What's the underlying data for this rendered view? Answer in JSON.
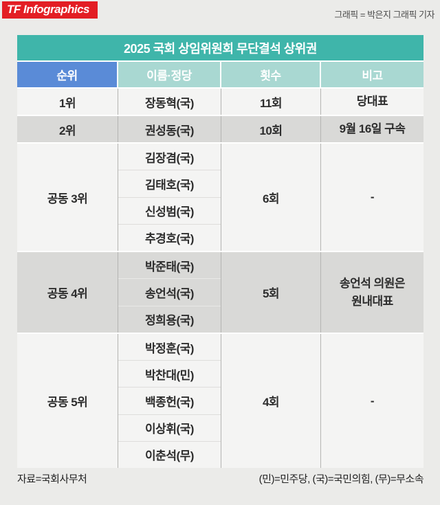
{
  "branding": {
    "logo_text": "TF Infographics",
    "credit": "그래픽 = 박은지 그래픽 기자"
  },
  "title": "2025 국회 상임위원회 무단결석 상위권",
  "table": {
    "headers": [
      "순위",
      "이름·정당",
      "횟수",
      "비고"
    ],
    "groups": [
      {
        "rank": "1위",
        "names": [
          "장동혁(국)"
        ],
        "count": "11회",
        "note": "당대표"
      },
      {
        "rank": "2위",
        "names": [
          "권성동(국)"
        ],
        "count": "10회",
        "note": "9월 16일 구속"
      },
      {
        "rank": "공동 3위",
        "names": [
          "김장겸(국)",
          "김태호(국)",
          "신성범(국)",
          "추경호(국)"
        ],
        "count": "6회",
        "note": "-"
      },
      {
        "rank": "공동 4위",
        "names": [
          "박준태(국)",
          "송언석(국)",
          "정희용(국)"
        ],
        "count": "5회",
        "note": "송언석 의원은\n원내대표"
      },
      {
        "rank": "공동 5위",
        "names": [
          "박정훈(국)",
          "박찬대(민)",
          "백종헌(국)",
          "이상휘(국)",
          "이춘석(무)"
        ],
        "count": "4회",
        "note": "-"
      }
    ]
  },
  "footer": {
    "source": "자료=국회사무처",
    "legend": "(민)=민주당, (국)=국민의힘, (무)=무소속"
  },
  "colors": {
    "brand_red": "#e31e24",
    "title_teal": "#3fb5aa",
    "header_teal": "#a9d8d2",
    "header_blue": "#5a8bd7",
    "row_light": "#f4f4f3",
    "row_dark": "#d9d9d7",
    "page_bg": "#ebebe9"
  },
  "chart_data": {
    "type": "table",
    "title": "2025 국회 상임위원회 무단결석 상위권",
    "columns": [
      "순위",
      "이름·정당",
      "횟수",
      "비고"
    ],
    "rows": [
      [
        "1위",
        "장동혁(국)",
        "11회",
        "당대표"
      ],
      [
        "2위",
        "권성동(국)",
        "10회",
        "9월 16일 구속"
      ],
      [
        "공동 3위",
        "김장겸(국), 김태호(국), 신성범(국), 추경호(국)",
        "6회",
        "-"
      ],
      [
        "공동 4위",
        "박준태(국), 송언석(국), 정희용(국)",
        "5회",
        "송언석 의원은 원내대표"
      ],
      [
        "공동 5위",
        "박정훈(국), 박찬대(민), 백종헌(국), 이상휘(국), 이춘석(무)",
        "4회",
        "-"
      ]
    ],
    "source": "국회사무처",
    "legend_note": "(민)=민주당, (국)=국민의힘, (무)=무소속"
  }
}
